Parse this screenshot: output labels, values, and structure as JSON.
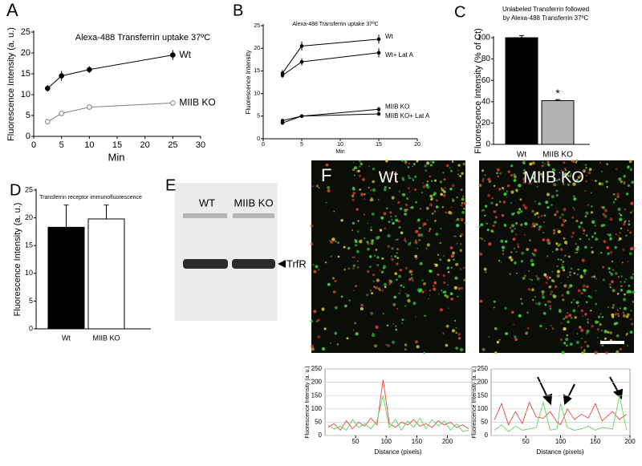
{
  "chart_data": [
    {
      "panel": "A",
      "type": "line",
      "title": "Alexa-488 Transferrin uptake 37ºC",
      "x_label": "Min",
      "y_label": "Fluorescence Intensity (a. u.)",
      "x": [
        2.5,
        5,
        10,
        25
      ],
      "series": [
        {
          "name": "Wt",
          "color": "#000000",
          "values": [
            11.5,
            14.5,
            16,
            19.5
          ],
          "errors": [
            0.8,
            1.2,
            0.8,
            1.2
          ]
        },
        {
          "name": "MIIB KO",
          "color": "#808080",
          "values": [
            3.5,
            5.5,
            7,
            8
          ],
          "errors": [
            0.5,
            0.5,
            0.5,
            0.5
          ]
        }
      ],
      "xlim": [
        0,
        30
      ],
      "xticks": [
        0,
        5,
        10,
        15,
        20,
        25,
        30
      ],
      "ylim": [
        0,
        25
      ],
      "yticks": [
        0,
        5,
        10,
        15,
        20,
        25
      ],
      "grid": false
    },
    {
      "panel": "B",
      "type": "line",
      "title": "Alexa-488 Transferrin uptake 37ºC",
      "x_label": "Min",
      "y_label": "Fluorescence Intensity",
      "x": [
        2.5,
        5,
        15
      ],
      "series": [
        {
          "name": "Wt",
          "color": "#000000",
          "values": [
            14.5,
            20.5,
            22
          ],
          "errors": [
            0.7,
            1,
            1
          ]
        },
        {
          "name": "Wt+ Lat A",
          "color": "#000000",
          "values": [
            14,
            17,
            19
          ],
          "errors": [
            0.6,
            0.8,
            1
          ]
        },
        {
          "name": "MIIB KO",
          "color": "#000000",
          "values": [
            4,
            5,
            6.5
          ],
          "errors": [
            0.4,
            0.4,
            0.5
          ]
        },
        {
          "name": "MIIB KO+ Lat A",
          "color": "#000000",
          "values": [
            3.5,
            5,
            5.5
          ],
          "errors": [
            0.4,
            0.4,
            0.4
          ]
        }
      ],
      "xlim": [
        0,
        20
      ],
      "xticks": [
        0,
        5,
        10,
        15,
        20
      ],
      "ylim": [
        0,
        25
      ],
      "yticks": [
        0,
        5,
        10,
        15,
        20,
        25
      ],
      "grid": false
    },
    {
      "panel": "C",
      "type": "bar",
      "title": [
        "Unlabeled Transferrin followed",
        "by Alexa-488 Transferrin 37ºC"
      ],
      "y_label": "Fluorescence Intensity (% of Ct)",
      "categories": [
        "Wt",
        "MIIB KO"
      ],
      "values": [
        100,
        41
      ],
      "errors": [
        2,
        1
      ],
      "colors": [
        "#000000",
        "#b3b3b3"
      ],
      "annotation": "*",
      "ylim": [
        0,
        100
      ],
      "yticks": [
        0,
        20,
        40,
        60,
        80,
        100
      ],
      "grid": false
    },
    {
      "panel": "D",
      "type": "bar",
      "title": "Transferrin receptor immunofluorescence",
      "y_label": "Fluorescence Intensity (a. u.)",
      "categories": [
        "Wt",
        "MIIB KO"
      ],
      "values": [
        18.3,
        19.8
      ],
      "errors": [
        4,
        2.5
      ],
      "colors": [
        "#000000",
        "#ffffff"
      ],
      "ylim": [
        0,
        25
      ],
      "yticks": [
        0,
        5,
        10,
        15,
        20,
        25
      ],
      "grid": false
    },
    {
      "type": "line",
      "x_label": "Distance (pixels)",
      "y_label": "Fluorescence Intensity (a. u.)",
      "x": [
        5,
        15,
        25,
        35,
        45,
        55,
        65,
        75,
        85,
        95,
        105,
        115,
        125,
        135,
        145,
        155,
        165,
        175,
        185,
        195,
        205,
        215,
        225,
        235
      ],
      "series": [
        {
          "color": "#e8453c",
          "values": [
            30,
            45,
            20,
            55,
            25,
            50,
            35,
            65,
            40,
            210,
            45,
            30,
            50,
            40,
            60,
            35,
            45,
            30,
            55,
            40,
            50,
            30,
            40,
            25
          ]
        },
        {
          "color": "#5cd65c",
          "values": [
            40,
            25,
            35,
            20,
            60,
            30,
            45,
            25,
            55,
            150,
            30,
            60,
            20,
            55,
            30,
            65,
            25,
            60,
            35,
            55,
            20,
            45,
            15,
            20
          ]
        }
      ],
      "xlim": [
        0,
        240
      ],
      "xticks": [
        50,
        100,
        150,
        200
      ],
      "ylim": [
        0,
        250
      ],
      "yticks": [
        0,
        50,
        100,
        150,
        200,
        250
      ],
      "grid": true
    },
    {
      "type": "line",
      "x_label": "Distance (pixels)",
      "y_label": "Fluorescence Intensity (a. u.)",
      "x": [
        5,
        15,
        25,
        35,
        45,
        55,
        65,
        75,
        85,
        95,
        100,
        110,
        120,
        130,
        140,
        150,
        160,
        175,
        185,
        195
      ],
      "series": [
        {
          "color": "#e8453c",
          "values": [
            60,
            120,
            40,
            90,
            45,
            125,
            70,
            65,
            90,
            50,
            40,
            100,
            60,
            80,
            65,
            120,
            55,
            90,
            60,
            80
          ]
        },
        {
          "color": "#5cd65c",
          "values": [
            20,
            40,
            15,
            35,
            20,
            25,
            30,
            125,
            20,
            25,
            120,
            30,
            20,
            25,
            35,
            20,
            30,
            25,
            150,
            20
          ]
        }
      ],
      "xlim": [
        0,
        200
      ],
      "xticks": [
        50,
        100,
        150,
        200
      ],
      "ylim": [
        0,
        250
      ],
      "yticks": [
        0,
        50,
        100,
        150,
        200,
        250
      ],
      "grid": true
    }
  ],
  "blot": {
    "panel": "E",
    "lanes": [
      "WT",
      "MIIB KO"
    ],
    "band_label": "TrfR"
  },
  "micrographs": {
    "panel": "F",
    "images": [
      "Wt",
      "MIIB KO"
    ]
  }
}
